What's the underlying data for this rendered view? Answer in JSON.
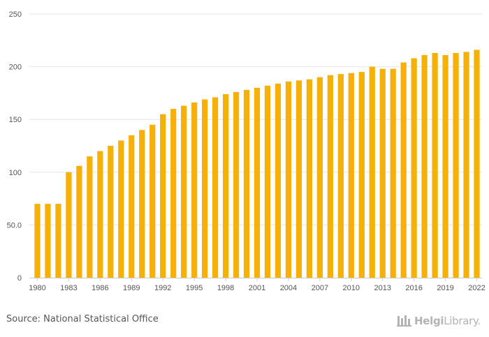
{
  "chart_data": {
    "type": "bar",
    "categories": [
      "1980",
      "1981",
      "1982",
      "1983",
      "1984",
      "1985",
      "1986",
      "1987",
      "1988",
      "1989",
      "1990",
      "1991",
      "1992",
      "1993",
      "1994",
      "1995",
      "1996",
      "1997",
      "1998",
      "1999",
      "2000",
      "2001",
      "2002",
      "2003",
      "2004",
      "2005",
      "2006",
      "2007",
      "2008",
      "2009",
      "2010",
      "2011",
      "2012",
      "2013",
      "2014",
      "2015",
      "2016",
      "2017",
      "2018",
      "2019",
      "2020",
      "2021",
      "2022"
    ],
    "x_tick_labels": [
      "1980",
      "1983",
      "1986",
      "1989",
      "1992",
      "1995",
      "1998",
      "2001",
      "2004",
      "2007",
      "2010",
      "2013",
      "2016",
      "2019",
      "2022"
    ],
    "y_tick_labels": [
      "0",
      "50.0",
      "100",
      "150",
      "200",
      "250"
    ],
    "y_ticks": [
      0,
      50,
      100,
      150,
      200,
      250
    ],
    "values": [
      70,
      70,
      70,
      100,
      106,
      115,
      120,
      125,
      130,
      135,
      140,
      145,
      155,
      160,
      163,
      166,
      169,
      171,
      174,
      176,
      178,
      180,
      182,
      184,
      186,
      187,
      188,
      190,
      192,
      193,
      194,
      195,
      200,
      198,
      198,
      204,
      208,
      211,
      213,
      211,
      213,
      214,
      216
    ],
    "ylim": [
      0,
      250
    ],
    "bar_color": "#f5b00a",
    "grid": true,
    "title": "",
    "xlabel": "",
    "ylabel": ""
  },
  "footer": {
    "source": "Source: National Statistical Office",
    "brand_helgi": "Helgi",
    "brand_library": "Library."
  },
  "colors": {
    "bar": "#f5b00a",
    "grid": "#e6e6e6",
    "axis_text": "#555555",
    "brand": "#b3b3b3"
  }
}
